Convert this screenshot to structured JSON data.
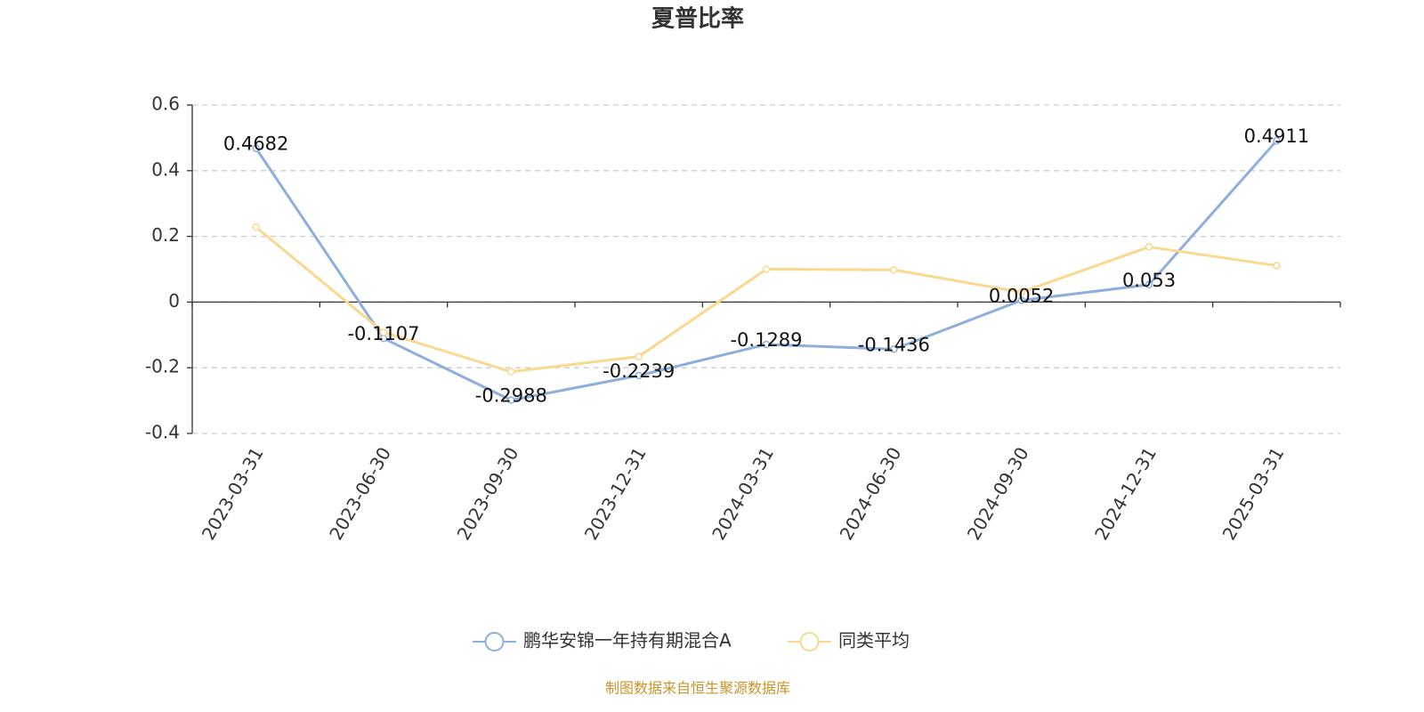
{
  "chart_data": {
    "type": "line",
    "title": "夏普比率",
    "categories": [
      "2023-03-31",
      "2023-06-30",
      "2023-09-30",
      "2023-12-31",
      "2024-03-31",
      "2024-06-30",
      "2024-09-30",
      "2024-12-31",
      "2025-03-31"
    ],
    "series": [
      {
        "name": "鹏华安锦一年持有期混合A",
        "color": "#8eaedc",
        "values": [
          0.4682,
          -0.1107,
          -0.2988,
          -0.2239,
          -0.1289,
          -0.1436,
          0.0052,
          0.053,
          0.4911
        ],
        "labels": true
      },
      {
        "name": "同类平均",
        "color": "#fad88f",
        "values": [
          0.228,
          -0.092,
          -0.212,
          -0.166,
          0.1,
          0.098,
          0.03,
          0.168,
          0.111
        ],
        "labels": false
      }
    ],
    "ylim": [
      -0.4,
      0.6
    ],
    "yticks": [
      -0.4,
      -0.2,
      0,
      0.2,
      0.4,
      0.6
    ],
    "grid": true,
    "source": "制图数据来自恒生聚源数据库"
  }
}
